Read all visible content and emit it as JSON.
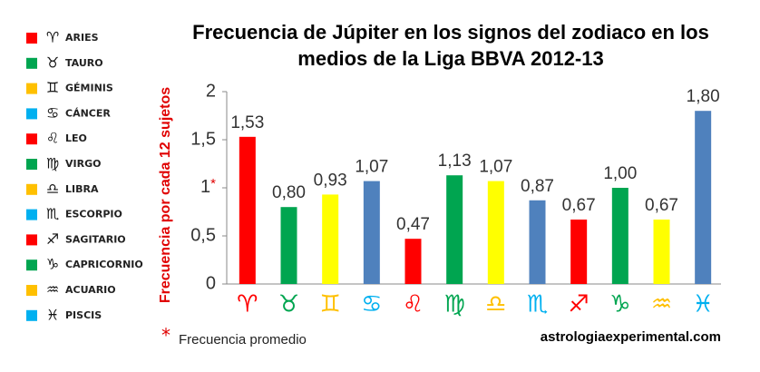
{
  "chart_data": {
    "type": "bar",
    "title": [
      "Frecuencia de Júpiter en los signos del zodiaco en los",
      "medios de la Liga BBVA 2012-13"
    ],
    "y_label": "Frecuencia por cada 12 sujetos",
    "categories": [
      "♈",
      "♉",
      "♊",
      "♋",
      "♌",
      "♍",
      "♎",
      "♏",
      "♐",
      "♑",
      "♒",
      "♓"
    ],
    "values": [
      1.53,
      0.8,
      0.93,
      1.07,
      0.47,
      1.13,
      1.07,
      0.87,
      0.67,
      1.0,
      0.67,
      1.8
    ],
    "value_labels": [
      "1,53",
      "0,80",
      "0,93",
      "1,07",
      "0,47",
      "1,13",
      "1,07",
      "0,87",
      "0,67",
      "1,00",
      "0,67",
      "1,80"
    ],
    "colors": [
      "#ff0000",
      "#00a550",
      "#ffff00",
      "#4f81bd",
      "#ff0000",
      "#00a550",
      "#ffff00",
      "#4f81bd",
      "#ff0000",
      "#00a550",
      "#ffff00",
      "#4f81bd"
    ],
    "ylim": [
      0,
      2
    ],
    "yticks": [
      0,
      {
        "value": 0.5,
        "label": "0,5"
      },
      {
        "value": 1,
        "label": "1*"
      },
      {
        "value": 1.5,
        "label": "1,5"
      },
      2
    ],
    "grid": false,
    "legend": [
      {
        "symbol": "♈",
        "name": "ARIES",
        "color": "#ff0000"
      },
      {
        "symbol": "♉",
        "name": "TAURO",
        "color": "#00a550"
      },
      {
        "symbol": "♊",
        "name": "GÉMINIS",
        "color": "#ffc000"
      },
      {
        "symbol": "♋",
        "name": "CÁNCER",
        "color": "#00b0f0"
      },
      {
        "symbol": "♌",
        "name": "LEO",
        "color": "#ff0000"
      },
      {
        "symbol": "♍",
        "name": "VIRGO",
        "color": "#00a550"
      },
      {
        "symbol": "♎",
        "name": "LIBRA",
        "color": "#ffc000"
      },
      {
        "symbol": "♏",
        "name": "ESCORPIO",
        "color": "#00b0f0"
      },
      {
        "symbol": "♐",
        "name": "SAGITARIO",
        "color": "#ff0000"
      },
      {
        "symbol": "♑",
        "name": "CAPRICORNIO",
        "color": "#00a550"
      },
      {
        "symbol": "♒",
        "name": "ACUARIO",
        "color": "#ffc000"
      },
      {
        "symbol": "♓",
        "name": "PISCIS",
        "color": "#00b0f0"
      }
    ],
    "footnote_marker": "*",
    "footnote": "Frecuencia promedio",
    "source": "astrologiaexperimental.com"
  }
}
